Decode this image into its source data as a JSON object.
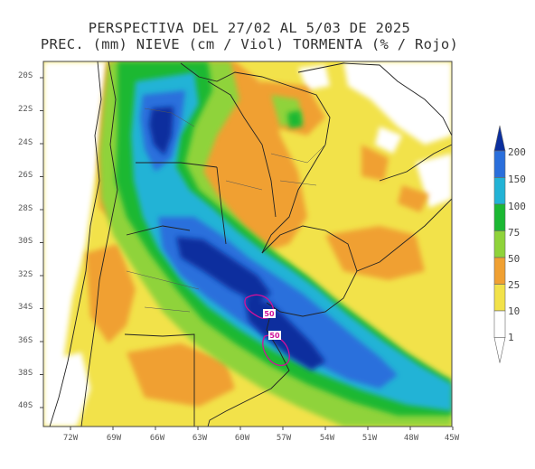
{
  "title_line1": "PERSPECTIVA DEL 27/02 AL 5/03 DE 2025",
  "title_line2": "PREC. (mm) NIEVE (cm / Viol) TORMENTA (% / Rojo)",
  "lat_labels": [
    "20S",
    "22S",
    "24S",
    "26S",
    "28S",
    "30S",
    "32S",
    "34S",
    "36S",
    "38S",
    "40S"
  ],
  "lon_labels": [
    "72W",
    "69W",
    "66W",
    "63W",
    "60W",
    "57W",
    "54W",
    "51W",
    "48W",
    "45W"
  ],
  "legend": {
    "levels": [
      "200",
      "150",
      "100",
      "75",
      "50",
      "25",
      "10",
      "1"
    ],
    "colors": {
      "200": "#0b2f9e",
      "150": "#2a6fdc",
      "100": "#22b3d6",
      "75": "#1bb833",
      "50": "#8fd33a",
      "25": "#f0a032",
      "10": "#f2e24a",
      "1": "#ffffff"
    }
  },
  "storm_labels": [
    "50",
    "50"
  ]
}
